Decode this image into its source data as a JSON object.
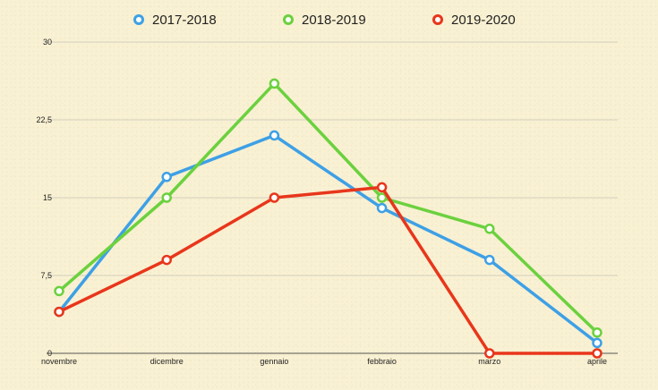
{
  "chart_data": {
    "type": "line",
    "categories": [
      "novembre",
      "dicembre",
      "gennaio",
      "febbraio",
      "marzo",
      "aprile"
    ],
    "series": [
      {
        "name": "2017-2018",
        "color": "#3ea0e6",
        "values": [
          4,
          17,
          21,
          14,
          9,
          1
        ]
      },
      {
        "name": "2018-2019",
        "color": "#6bd13e",
        "values": [
          6,
          15,
          26,
          15,
          12,
          2
        ]
      },
      {
        "name": "2019-2020",
        "color": "#e8361b",
        "values": [
          4,
          9,
          15,
          16,
          0,
          0
        ]
      }
    ],
    "yticks": [
      {
        "value": 0,
        "label": "0"
      },
      {
        "value": 7.5,
        "label": "7,5"
      },
      {
        "value": 15,
        "label": "15"
      },
      {
        "value": 22.5,
        "label": "22,5"
      },
      {
        "value": 30,
        "label": "30"
      }
    ],
    "ylim": [
      0,
      30
    ],
    "grid": true,
    "legend_position": "top-center"
  }
}
